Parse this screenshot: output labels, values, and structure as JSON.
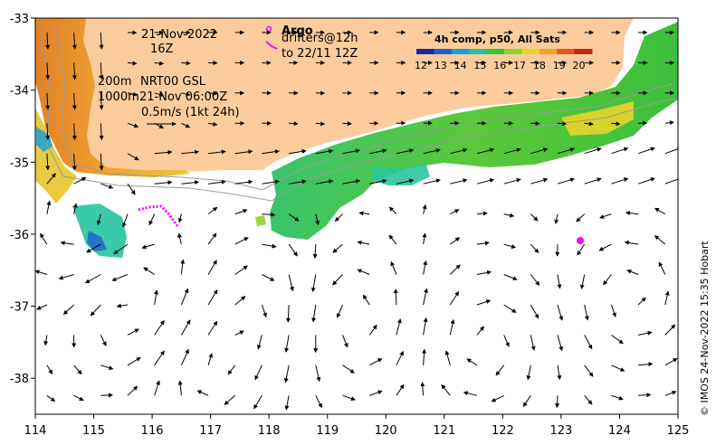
{
  "map": {
    "date_line1": "21-Nov-2022",
    "date_line2": "16Z",
    "argo_label": "Argo",
    "drifters_line1": "drifters@12h",
    "drifters_line2": "to 22/11 12Z",
    "isobath_200": "200m",
    "isobath_1000": "1000m",
    "currents_source": "NRT00 GSL",
    "currents_time": "21-Nov 06:00Z",
    "scale_vector": "0.5m/s (1kt 24h)",
    "credit": "© IMOS 24-Nov-2022 15:35 Hobart"
  },
  "colorbar": {
    "title": "4h comp, p50, All Sats",
    "ticks": [
      "12",
      "13",
      "14",
      "15",
      "16",
      "17",
      "18",
      "19",
      "20"
    ],
    "colors": [
      "#1a2a9e",
      "#1f5fd0",
      "#1aa0d8",
      "#25c4a0",
      "#39c43a",
      "#8fd22d",
      "#e8d42a",
      "#f0a22a",
      "#e05a1e",
      "#c02814"
    ]
  },
  "axes": {
    "x_ticks": [
      "114",
      "115",
      "116",
      "117",
      "118",
      "119",
      "120",
      "121",
      "122",
      "123",
      "124",
      "125"
    ],
    "y_ticks": [
      "-33",
      "-34",
      "-35",
      "-36",
      "-37",
      "-38"
    ],
    "x_range": [
      114,
      125
    ],
    "y_range": [
      -38.5,
      -33
    ]
  },
  "colors": {
    "land": "#fccc9c",
    "frame": "#000000",
    "argo": "#ff00ff",
    "isobath": "#9a9a9a"
  }
}
